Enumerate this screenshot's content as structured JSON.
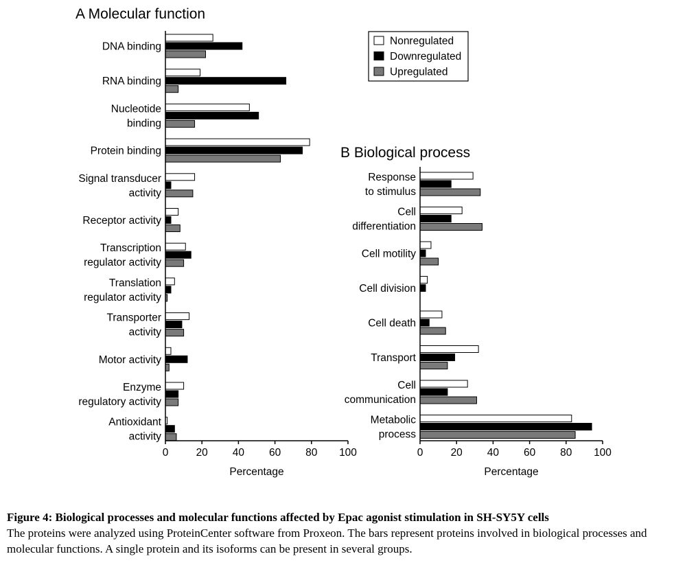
{
  "legend": {
    "items": [
      {
        "label": "Nonregulated",
        "color": "#ffffff"
      },
      {
        "label": "Downregulated",
        "color": "#000000"
      },
      {
        "label": "Upregulated",
        "color": "#7a7a7a"
      }
    ]
  },
  "caption": {
    "title": "Figure 4: Biological processes and molecular functions affected by Epac agonist stimulation in SH-SY5Y cells",
    "text": "The proteins were analyzed using ProteinCenter software from Proxeon. The bars represent proteins involved in biological processes and molecular functions. A single protein and its isoforms can be present in several groups."
  },
  "chart_data": [
    {
      "type": "bar",
      "orientation": "horizontal",
      "title": "A Molecular function",
      "xlabel": "Percentage",
      "xlim": [
        0,
        100
      ],
      "xticks": [
        "0",
        "20",
        "40",
        "60",
        "80",
        "100"
      ],
      "categories": [
        [
          "DNA binding"
        ],
        [
          "RNA binding"
        ],
        [
          "Nucleotide",
          "binding"
        ],
        [
          "Protein binding"
        ],
        [
          "Signal transducer",
          "activity"
        ],
        [
          "Receptor activity"
        ],
        [
          "Transcription",
          "regulator activity"
        ],
        [
          "Translation",
          "regulator activity"
        ],
        [
          "Transporter",
          "activity"
        ],
        [
          "Motor activity"
        ],
        [
          "Enzyme",
          "regulatory activity"
        ],
        [
          "Antioxidant",
          "activity"
        ]
      ],
      "series": [
        {
          "name": "Nonregulated",
          "values": [
            26,
            19,
            46,
            79,
            16,
            7,
            11,
            5,
            13,
            3,
            10,
            1
          ]
        },
        {
          "name": "Downregulated",
          "values": [
            42,
            66,
            51,
            75,
            3,
            3,
            14,
            3,
            9,
            12,
            7,
            5
          ]
        },
        {
          "name": "Upregulated",
          "values": [
            22,
            7,
            16,
            63,
            15,
            8,
            10,
            1,
            10,
            2,
            7,
            6
          ]
        }
      ]
    },
    {
      "type": "bar",
      "orientation": "horizontal",
      "title": "B Biological process",
      "xlabel": "Percentage",
      "xlim": [
        0,
        100
      ],
      "xticks": [
        "0",
        "20",
        "40",
        "60",
        "80",
        "100"
      ],
      "categories": [
        [
          "Response",
          "to stimulus"
        ],
        [
          "Cell",
          "differentiation"
        ],
        [
          "Cell motility"
        ],
        [
          "Cell division"
        ],
        [
          "Cell death"
        ],
        [
          "Transport"
        ],
        [
          "Cell",
          "communication"
        ],
        [
          "Metabolic",
          "process"
        ]
      ],
      "series": [
        {
          "name": "Nonregulated",
          "values": [
            29,
            23,
            6,
            4,
            12,
            32,
            26,
            83
          ]
        },
        {
          "name": "Downregulated",
          "values": [
            17,
            17,
            3,
            3,
            5,
            19,
            15,
            94
          ]
        },
        {
          "name": "Upregulated",
          "values": [
            33,
            34,
            10,
            0,
            14,
            15,
            31,
            85
          ]
        }
      ]
    }
  ]
}
